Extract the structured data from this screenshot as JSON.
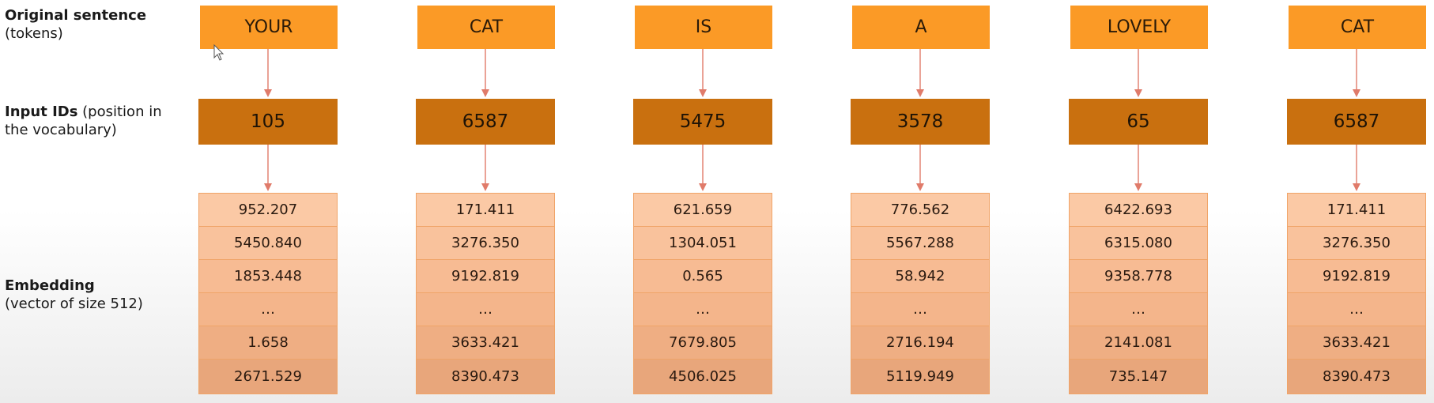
{
  "row_labels": {
    "tokens_title": "Original sentence",
    "tokens_sub": "(tokens)",
    "ids_title": "Input IDs",
    "ids_sub_1": " (position in",
    "ids_sub_2": "the vocabulary)",
    "embedding_title": "Embedding",
    "embedding_sub": "(vector of size 512)"
  },
  "columns": [
    {
      "token": "YOUR",
      "id": "105",
      "embedding": [
        "952.207",
        "5450.840",
        "1853.448",
        "…",
        "1.658",
        "2671.529"
      ]
    },
    {
      "token": "CAT",
      "id": "6587",
      "embedding": [
        "171.411",
        "3276.350",
        "9192.819",
        "…",
        "3633.421",
        "8390.473"
      ]
    },
    {
      "token": "IS",
      "id": "5475",
      "embedding": [
        "621.659",
        "1304.051",
        "0.565",
        "…",
        "7679.805",
        "4506.025"
      ]
    },
    {
      "token": "A",
      "id": "3578",
      "embedding": [
        "776.562",
        "5567.288",
        "58.942",
        "…",
        "2716.194",
        "5119.949"
      ]
    },
    {
      "token": "LOVELY",
      "id": "65",
      "embedding": [
        "6422.693",
        "6315.080",
        "9358.778",
        "…",
        "2141.081",
        "735.147"
      ]
    },
    {
      "token": "CAT",
      "id": "6587",
      "embedding": [
        "171.411",
        "3276.350",
        "9192.819",
        "…",
        "3633.421",
        "8390.473"
      ]
    }
  ],
  "colors": {
    "token_box": "#fb9a26",
    "id_box": "#c9700f",
    "embedding_cell": "#f7bb93",
    "arrow": "#e07b6a"
  }
}
